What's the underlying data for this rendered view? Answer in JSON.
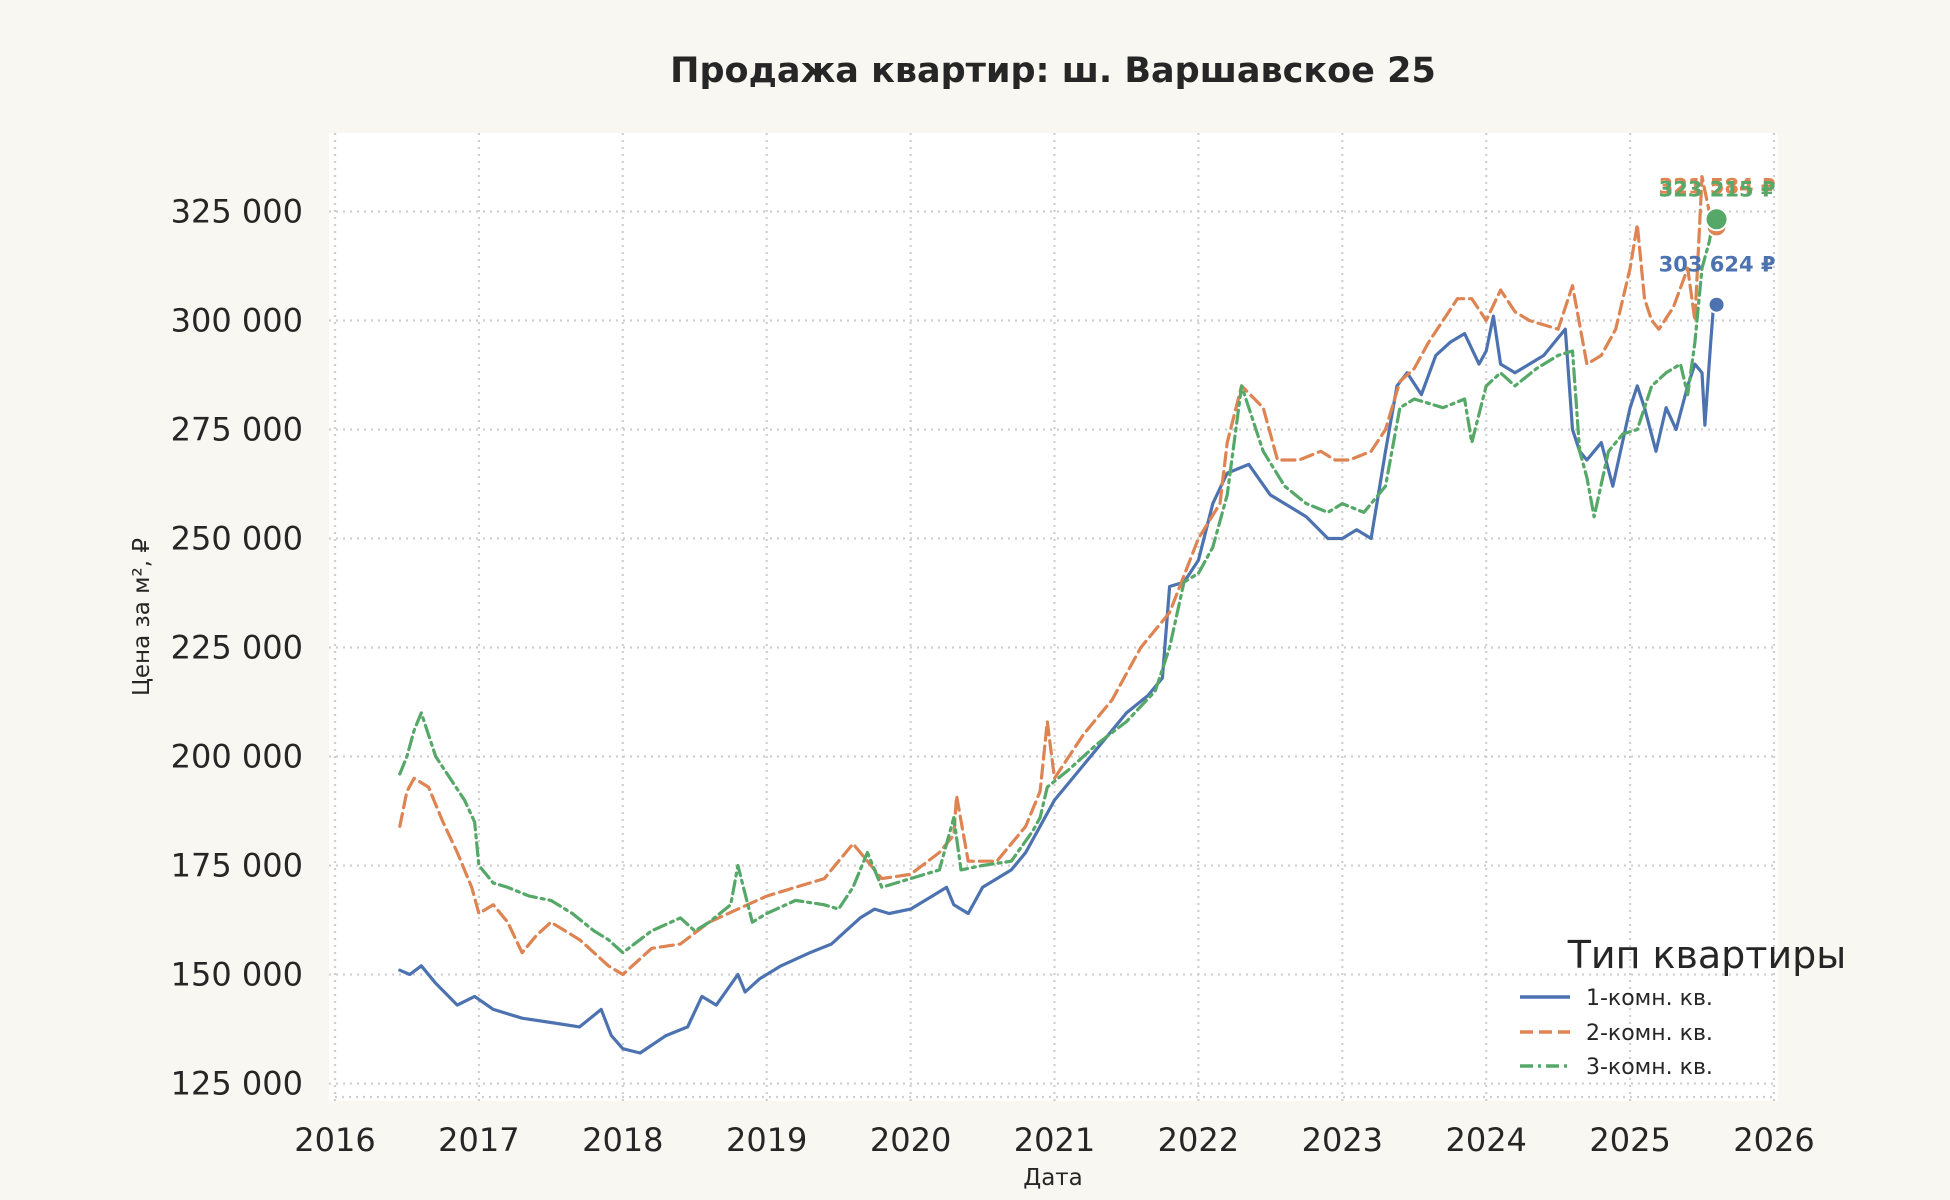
{
  "chart_data": {
    "type": "line",
    "title": "Продажа квартир: ш. Варшавское 25",
    "xlabel": "Дата",
    "ylabel": "Цена за м², ₽",
    "xlim": [
      2016.0,
      2026.0
    ],
    "ylim": [
      121000,
      343000
    ],
    "x_ticks": [
      2016,
      2017,
      2018,
      2019,
      2020,
      2021,
      2022,
      2023,
      2024,
      2025,
      2026
    ],
    "x_tick_labels": [
      "2016",
      "2017",
      "2018",
      "2019",
      "2020",
      "2021",
      "2022",
      "2023",
      "2024",
      "2025",
      "2026"
    ],
    "y_ticks": [
      125000,
      150000,
      175000,
      200000,
      225000,
      250000,
      275000,
      300000,
      325000
    ],
    "y_tick_labels": [
      "125 000",
      "150 000",
      "175 000",
      "200 000",
      "225 000",
      "250 000",
      "275 000",
      "300 000",
      "325 000"
    ],
    "grid": true,
    "legend": {
      "title": "Тип квартиры",
      "position": "bottom-right"
    },
    "series": [
      {
        "name": "1-комн. кв.",
        "color": "#4c72b0",
        "dash": "solid",
        "end_label": "303 624 ₽",
        "end_value": 303624,
        "x": [
          2016.45,
          2016.52,
          2016.6,
          2016.7,
          2016.85,
          2016.97,
          2017.1,
          2017.3,
          2017.5,
          2017.7,
          2017.85,
          2017.92,
          2018.0,
          2018.12,
          2018.3,
          2018.45,
          2018.55,
          2018.65,
          2018.8,
          2018.85,
          2018.95,
          2019.1,
          2019.3,
          2019.45,
          2019.55,
          2019.65,
          2019.75,
          2019.85,
          2020.0,
          2020.15,
          2020.25,
          2020.3,
          2020.4,
          2020.5,
          2020.6,
          2020.7,
          2020.8,
          2020.9,
          2021.0,
          2021.15,
          2021.3,
          2021.5,
          2021.65,
          2021.75,
          2021.8,
          2021.9,
          2022.0,
          2022.1,
          2022.2,
          2022.35,
          2022.5,
          2022.6,
          2022.75,
          2022.9,
          2023.0,
          2023.1,
          2023.2,
          2023.3,
          2023.38,
          2023.45,
          2023.55,
          2023.65,
          2023.75,
          2023.85,
          2023.95,
          2024.0,
          2024.05,
          2024.1,
          2024.2,
          2024.3,
          2024.4,
          2024.5,
          2024.55,
          2024.6,
          2024.65,
          2024.7,
          2024.8,
          2024.88,
          2025.0,
          2025.05,
          2025.1,
          2025.18,
          2025.25,
          2025.32,
          2025.4,
          2025.45,
          2025.5,
          2025.52,
          2025.56,
          2025.58
        ],
        "y": [
          151000,
          150000,
          152000,
          148000,
          143000,
          145000,
          142000,
          140000,
          139000,
          138000,
          142000,
          136000,
          133000,
          132000,
          136000,
          138000,
          145000,
          143000,
          150000,
          146000,
          149000,
          152000,
          155000,
          157000,
          160000,
          163000,
          165000,
          164000,
          165000,
          168000,
          170000,
          166000,
          164000,
          170000,
          172000,
          174000,
          178000,
          184000,
          190000,
          196000,
          202000,
          210000,
          214000,
          218000,
          239000,
          240000,
          245000,
          258000,
          265000,
          267000,
          260000,
          258000,
          255000,
          250000,
          250000,
          252000,
          250000,
          270000,
          285000,
          288000,
          283000,
          292000,
          295000,
          297000,
          290000,
          293000,
          301000,
          290000,
          288000,
          290000,
          292000,
          296000,
          298000,
          275000,
          270000,
          268000,
          272000,
          262000,
          280000,
          285000,
          280000,
          270000,
          280000,
          275000,
          285000,
          290000,
          288000,
          276000,
          295000,
          303624
        ]
      },
      {
        "name": "2-комн. кв.",
        "color": "#dd8452",
        "dash": "dashed",
        "end_label": "321 584 ₽",
        "end_value": 321584,
        "x": [
          2016.45,
          2016.5,
          2016.55,
          2016.65,
          2016.75,
          2016.85,
          2016.95,
          2017.0,
          2017.1,
          2017.2,
          2017.3,
          2017.4,
          2017.5,
          2017.6,
          2017.7,
          2017.8,
          2017.9,
          2018.0,
          2018.1,
          2018.2,
          2018.4,
          2018.6,
          2018.8,
          2019.0,
          2019.2,
          2019.4,
          2019.5,
          2019.55,
          2019.6,
          2019.7,
          2019.8,
          2020.0,
          2020.2,
          2020.3,
          2020.32,
          2020.4,
          2020.6,
          2020.8,
          2020.9,
          2020.95,
          2021.0,
          2021.2,
          2021.4,
          2021.6,
          2021.8,
          2022.0,
          2022.15,
          2022.2,
          2022.3,
          2022.45,
          2022.55,
          2022.7,
          2022.85,
          2022.95,
          2023.05,
          2023.2,
          2023.3,
          2023.4,
          2023.5,
          2023.6,
          2023.7,
          2023.8,
          2023.9,
          2024.0,
          2024.1,
          2024.2,
          2024.3,
          2024.5,
          2024.6,
          2024.7,
          2024.8,
          2024.9,
          2025.0,
          2025.05,
          2025.1,
          2025.15,
          2025.2,
          2025.3,
          2025.4,
          2025.45,
          2025.5,
          2025.55,
          2025.58
        ],
        "y": [
          184000,
          192000,
          195000,
          193000,
          185000,
          178000,
          170000,
          164000,
          166000,
          162000,
          155000,
          159000,
          162000,
          160000,
          158000,
          155000,
          152000,
          150000,
          153000,
          156000,
          157000,
          162000,
          165000,
          168000,
          170000,
          172000,
          176000,
          178000,
          180000,
          176000,
          172000,
          173000,
          178000,
          182000,
          191000,
          176000,
          176000,
          184000,
          192000,
          208000,
          195000,
          205000,
          213000,
          225000,
          233000,
          250000,
          258000,
          272000,
          285000,
          280000,
          268000,
          268000,
          270000,
          268000,
          268000,
          270000,
          275000,
          286000,
          289000,
          295000,
          300000,
          305000,
          305000,
          300000,
          307000,
          302000,
          300000,
          298000,
          308000,
          290000,
          292000,
          298000,
          312000,
          322000,
          305000,
          300000,
          298000,
          303000,
          312000,
          300000,
          333000,
          325000,
          321584
        ]
      },
      {
        "name": "3-комн. кв.",
        "color": "#55a868",
        "dash": "dashdot",
        "end_label": "323 215 ₽",
        "end_value": 323215,
        "x": [
          2016.45,
          2016.5,
          2016.55,
          2016.6,
          2016.65,
          2016.7,
          2016.8,
          2016.9,
          2016.97,
          2017.0,
          2017.1,
          2017.2,
          2017.35,
          2017.5,
          2017.65,
          2017.8,
          2017.9,
          2018.0,
          2018.2,
          2018.4,
          2018.5,
          2018.6,
          2018.75,
          2018.8,
          2018.9,
          2019.0,
          2019.2,
          2019.4,
          2019.5,
          2019.6,
          2019.7,
          2019.8,
          2020.0,
          2020.2,
          2020.3,
          2020.35,
          2020.5,
          2020.7,
          2020.85,
          2020.9,
          2020.95,
          2021.1,
          2021.3,
          2021.5,
          2021.7,
          2021.8,
          2021.9,
          2022.0,
          2022.1,
          2022.2,
          2022.3,
          2022.45,
          2022.6,
          2022.75,
          2022.9,
          2023.0,
          2023.15,
          2023.3,
          2023.4,
          2023.5,
          2023.7,
          2023.85,
          2023.9,
          2024.0,
          2024.1,
          2024.2,
          2024.35,
          2024.5,
          2024.6,
          2024.65,
          2024.7,
          2024.75,
          2024.85,
          2024.95,
          2025.05,
          2025.15,
          2025.25,
          2025.35,
          2025.4,
          2025.45,
          2025.5,
          2025.55,
          2025.58
        ],
        "y": [
          196000,
          200000,
          206000,
          210000,
          205000,
          200000,
          195000,
          190000,
          185000,
          175000,
          171000,
          170000,
          168000,
          167000,
          164000,
          160000,
          158000,
          155000,
          160000,
          163000,
          160000,
          162000,
          166000,
          175000,
          162000,
          164000,
          167000,
          166000,
          165000,
          170000,
          178000,
          170000,
          172000,
          174000,
          186000,
          174000,
          175000,
          176000,
          183000,
          186000,
          193000,
          197000,
          203000,
          208000,
          215000,
          225000,
          240000,
          242000,
          248000,
          260000,
          285000,
          270000,
          262000,
          258000,
          256000,
          258000,
          256000,
          262000,
          280000,
          282000,
          280000,
          282000,
          272000,
          285000,
          288000,
          285000,
          289000,
          292000,
          293000,
          270000,
          264000,
          255000,
          270000,
          274000,
          275000,
          285000,
          288000,
          290000,
          283000,
          295000,
          312000,
          318000,
          323215
        ]
      }
    ]
  }
}
